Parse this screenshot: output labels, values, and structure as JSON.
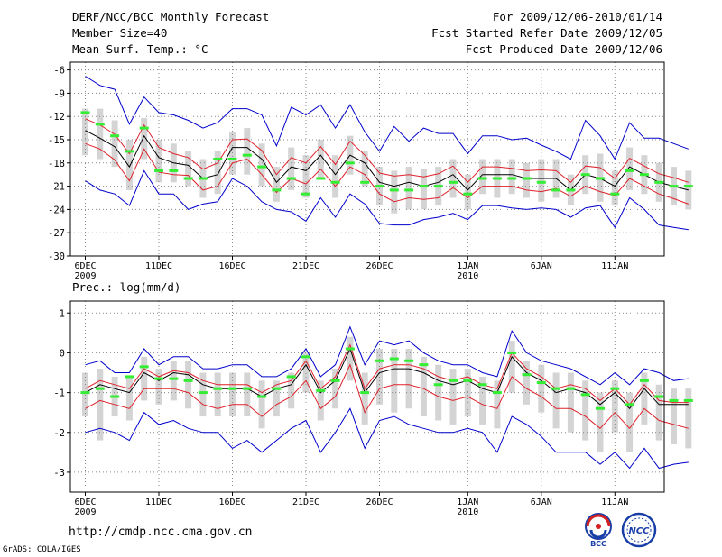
{
  "header": {
    "title": "DERF/NCC/BCC Monthly Forecast",
    "member_size": "Member Size=40",
    "variable": "Mean Surf. Temp.: °C",
    "period": "For 2009/12/06-2010/01/14",
    "fcst_started": "Fcst Started Refer Date 2009/12/05",
    "fcst_produced": "Fcst Produced Date 2009/12/06"
  },
  "footer": {
    "url": "http://cmdp.ncc.cma.gov.cn",
    "grads": "GrADS: COLA/IGES",
    "logo_bcc": "BCC",
    "logo_ncc": "NCC"
  },
  "colors": {
    "ensemble_box": "#d4d4d4",
    "mean_line": "#000000",
    "spread_line": "#e0202a",
    "range_line": "#0000cc",
    "observation": "#33ee33",
    "grid": "#888888"
  },
  "chart_data": [
    {
      "type": "line",
      "title": "Mean Surf. Temp.: °C",
      "xlabel": "",
      "ylabel": "°C",
      "ylim": [
        -30,
        -5
      ],
      "yticks": [
        -30,
        -27,
        -24,
        -21,
        -18,
        -15,
        -12,
        -9,
        -6
      ],
      "ytick_labels": [
        "-30",
        "-27",
        "-24",
        "-21",
        "-18",
        "-15",
        "-12",
        "-9",
        "-6"
      ],
      "x_days": 40,
      "xticks": [
        {
          "day": 0,
          "label": "6DEC",
          "sub": "2009"
        },
        {
          "day": 5,
          "label": "11DEC",
          "sub": ""
        },
        {
          "day": 10,
          "label": "16DEC",
          "sub": ""
        },
        {
          "day": 15,
          "label": "21DEC",
          "sub": ""
        },
        {
          "day": 20,
          "label": "26DEC",
          "sub": ""
        },
        {
          "day": 26,
          "label": "1JAN",
          "sub": "2010"
        },
        {
          "day": 31,
          "label": "6JAN",
          "sub": ""
        },
        {
          "day": 36,
          "label": "11JAN",
          "sub": ""
        }
      ],
      "series": [
        {
          "name": "ensemble mean",
          "color": "#000000",
          "values": [
            -13.8,
            -14.8,
            -15.9,
            -18.5,
            -14.5,
            -17.3,
            -18.0,
            -18.3,
            -20.0,
            -19.5,
            -16.0,
            -16.0,
            -17.5,
            -20.5,
            -18.5,
            -19.0,
            -17.0,
            -19.5,
            -17.0,
            -18.0,
            -20.5,
            -21.0,
            -20.5,
            -21.0,
            -20.5,
            -19.5,
            -21.5,
            -19.5,
            -19.5,
            -19.5,
            -20.0,
            -20.0,
            -20.0,
            -21.5,
            -19.5,
            -20.0,
            -21.0,
            -18.5,
            -19.5,
            -20.5,
            -21.0,
            -21.5
          ]
        },
        {
          "name": "upper spread",
          "color": "#e0202a",
          "values": [
            -12.3,
            -13.1,
            -14.3,
            -16.8,
            -13.1,
            -16.0,
            -16.8,
            -17.3,
            -18.8,
            -18.0,
            -15.0,
            -14.9,
            -16.4,
            -19.5,
            -17.3,
            -18.0,
            -15.9,
            -18.2,
            -15.2,
            -17.0,
            -19.3,
            -19.7,
            -19.5,
            -19.8,
            -19.4,
            -18.4,
            -20.5,
            -18.5,
            -18.5,
            -18.7,
            -19.0,
            -18.9,
            -19.0,
            -20.5,
            -18.4,
            -18.6,
            -20.0,
            -17.4,
            -18.4,
            -19.4,
            -19.9,
            -20.5
          ]
        },
        {
          "name": "lower spread",
          "color": "#e0202a",
          "values": [
            -15.5,
            -16.2,
            -17.6,
            -20.3,
            -16.2,
            -19.2,
            -19.5,
            -19.6,
            -21.5,
            -21.0,
            -18.0,
            -17.5,
            -19.5,
            -21.8,
            -20.0,
            -20.7,
            -18.8,
            -21.0,
            -18.5,
            -19.5,
            -22.0,
            -23.0,
            -22.5,
            -22.7,
            -22.5,
            -21.2,
            -22.5,
            -21.0,
            -21.0,
            -21.0,
            -21.5,
            -21.7,
            -21.3,
            -22.3,
            -21.0,
            -21.7,
            -22.2,
            -20.0,
            -21.0,
            -22.0,
            -22.6,
            -23.3
          ]
        },
        {
          "name": "member max",
          "color": "#0000cc",
          "values": [
            -6.8,
            -8.0,
            -8.5,
            -13.0,
            -9.5,
            -11.5,
            -11.8,
            -12.5,
            -13.5,
            -12.8,
            -11.0,
            -11.0,
            -11.8,
            -15.8,
            -10.8,
            -11.8,
            -10.5,
            -13.5,
            -10.5,
            -14.0,
            -16.5,
            -13.3,
            -15.2,
            -13.5,
            -14.2,
            -14.2,
            -16.8,
            -14.5,
            -14.5,
            -15.0,
            -14.8,
            -15.7,
            -16.5,
            -17.5,
            -12.5,
            -14.5,
            -17.5,
            -12.8,
            -14.8,
            -14.8,
            -15.5,
            -16.2
          ]
        },
        {
          "name": "member min",
          "color": "#0000cc",
          "values": [
            -20.3,
            -21.5,
            -22.0,
            -23.5,
            -19.0,
            -22.0,
            -22.0,
            -24.0,
            -23.3,
            -23.0,
            -20.0,
            -21.0,
            -23.0,
            -24.0,
            -24.3,
            -25.5,
            -22.5,
            -25.0,
            -22.0,
            -23.3,
            -25.8,
            -26.0,
            -26.0,
            -25.3,
            -25.0,
            -24.5,
            -25.3,
            -23.5,
            -23.5,
            -23.8,
            -24.0,
            -23.8,
            -24.0,
            -25.0,
            -23.8,
            -23.5,
            -26.3,
            -22.5,
            -24.0,
            -26.0,
            -26.3,
            -26.6
          ]
        }
      ],
      "ensemble_boxes": {
        "high": [
          -11.0,
          -11.0,
          -12.5,
          -15.0,
          -12.2,
          -15.0,
          -15.5,
          -16.5,
          -17.5,
          -16.5,
          -14.0,
          -13.5,
          -15.5,
          -18.5,
          -16.0,
          -17.0,
          -15.0,
          -17.0,
          -14.5,
          -16.5,
          -18.5,
          -19.0,
          -18.5,
          -18.8,
          -18.5,
          -17.5,
          -19.5,
          -17.5,
          -17.5,
          -17.5,
          -18.0,
          -17.5,
          -17.5,
          -19.5,
          -17.0,
          -16.8,
          -19.0,
          -16.0,
          -17.0,
          -18.0,
          -18.5,
          -19.0
        ],
        "low": [
          -17.0,
          -17.5,
          -18.5,
          -21.5,
          -17.5,
          -20.5,
          -20.5,
          -21.0,
          -22.5,
          -22.0,
          -19.5,
          -19.5,
          -21.0,
          -23.0,
          -21.5,
          -22.5,
          -20.0,
          -22.5,
          -19.5,
          -21.0,
          -23.5,
          -24.5,
          -24.0,
          -24.0,
          -23.5,
          -22.5,
          -24.0,
          -22.0,
          -22.5,
          -22.0,
          -22.5,
          -23.0,
          -22.5,
          -23.5,
          -22.0,
          -23.0,
          -23.5,
          -21.5,
          -22.0,
          -23.0,
          -23.5,
          -24.0
        ]
      },
      "observations": [
        -11.5,
        -13.0,
        -14.5,
        -16.5,
        -13.5,
        -19.0,
        -19.0,
        -20.0,
        -20.0,
        -17.5,
        -17.5,
        -17.0,
        -18.5,
        -21.5,
        -20.0,
        -22.0,
        -20.0,
        -20.5,
        -18.0,
        -20.5,
        -21.0,
        -21.5,
        -21.5,
        -21.0,
        -21.0,
        -20.5,
        -22.0,
        -20.0,
        -20.0,
        -20.0,
        -20.0,
        -20.5,
        -21.5,
        -21.5,
        -19.5,
        -20.0,
        -22.0,
        -19.0,
        -19.5,
        -20.5,
        -21.0,
        -21.0
      ]
    },
    {
      "type": "line",
      "title": "Prec.: log(mm/d)",
      "xlabel": "",
      "ylabel": "log(mm/d)",
      "ylim": [
        -3.5,
        1.3
      ],
      "yticks": [
        -3,
        -2,
        -1,
        0,
        1
      ],
      "ytick_labels": [
        "-3",
        "-2",
        "-1",
        "0",
        "1"
      ],
      "x_days": 40,
      "xticks": [
        {
          "day": 0,
          "label": "6DEC",
          "sub": "2009"
        },
        {
          "day": 5,
          "label": "11DEC",
          "sub": ""
        },
        {
          "day": 10,
          "label": "16DEC",
          "sub": ""
        },
        {
          "day": 15,
          "label": "21DEC",
          "sub": ""
        },
        {
          "day": 20,
          "label": "26DEC",
          "sub": ""
        },
        {
          "day": 26,
          "label": "1JAN",
          "sub": "2010"
        },
        {
          "day": 31,
          "label": "6JAN",
          "sub": ""
        },
        {
          "day": 36,
          "label": "11JAN",
          "sub": ""
        }
      ],
      "series": [
        {
          "name": "ensemble mean",
          "color": "#000000",
          "values": [
            -1.0,
            -0.8,
            -0.9,
            -1.0,
            -0.5,
            -0.7,
            -0.5,
            -0.55,
            -0.8,
            -0.9,
            -0.9,
            -0.9,
            -1.1,
            -0.9,
            -0.8,
            -0.3,
            -1.0,
            -0.7,
            0.1,
            -1.0,
            -0.5,
            -0.4,
            -0.4,
            -0.5,
            -0.7,
            -0.8,
            -0.7,
            -0.9,
            -1.0,
            -0.1,
            -0.5,
            -0.7,
            -1.0,
            -0.9,
            -1.0,
            -1.3,
            -1.0,
            -1.4,
            -0.9,
            -1.3,
            -1.3,
            -1.3
          ]
        },
        {
          "name": "upper spread",
          "color": "#e0202a",
          "values": [
            -0.9,
            -0.7,
            -0.8,
            -0.9,
            -0.4,
            -0.6,
            -0.45,
            -0.5,
            -0.7,
            -0.8,
            -0.8,
            -0.8,
            -1.0,
            -0.8,
            -0.7,
            -0.2,
            -0.9,
            -0.6,
            0.2,
            -0.9,
            -0.4,
            -0.3,
            -0.3,
            -0.4,
            -0.6,
            -0.7,
            -0.6,
            -0.8,
            -0.9,
            0.0,
            -0.4,
            -0.6,
            -0.9,
            -0.8,
            -0.9,
            -1.2,
            -0.9,
            -1.3,
            -0.8,
            -1.2,
            -1.25,
            -1.25
          ]
        },
        {
          "name": "lower spread",
          "color": "#e0202a",
          "values": [
            -1.4,
            -1.2,
            -1.3,
            -1.4,
            -0.9,
            -0.9,
            -0.9,
            -1.0,
            -1.3,
            -1.4,
            -1.3,
            -1.3,
            -1.6,
            -1.3,
            -1.1,
            -0.7,
            -1.4,
            -1.1,
            -0.3,
            -1.5,
            -0.9,
            -0.8,
            -0.8,
            -0.9,
            -1.1,
            -1.2,
            -1.1,
            -1.3,
            -1.4,
            -0.6,
            -0.9,
            -1.1,
            -1.4,
            -1.4,
            -1.6,
            -1.9,
            -1.5,
            -1.9,
            -1.4,
            -1.7,
            -1.8,
            -1.9
          ]
        },
        {
          "name": "member max",
          "color": "#0000cc",
          "values": [
            -0.3,
            -0.2,
            -0.5,
            -0.5,
            0.1,
            -0.3,
            -0.1,
            -0.1,
            -0.4,
            -0.4,
            -0.3,
            -0.3,
            -0.6,
            -0.6,
            -0.4,
            0.1,
            -0.6,
            -0.3,
            0.65,
            -0.3,
            0.3,
            0.2,
            0.3,
            0.0,
            -0.2,
            -0.3,
            -0.3,
            -0.5,
            -0.6,
            0.55,
            0.0,
            -0.2,
            -0.3,
            -0.4,
            -0.6,
            -0.8,
            -0.5,
            -0.8,
            -0.4,
            -0.5,
            -0.7,
            -0.65
          ]
        },
        {
          "name": "member min",
          "color": "#0000cc",
          "values": [
            -2.0,
            -1.9,
            -2.0,
            -2.2,
            -1.5,
            -1.8,
            -1.7,
            -1.9,
            -2.0,
            -2.0,
            -2.4,
            -2.2,
            -2.5,
            -2.2,
            -1.9,
            -1.7,
            -2.5,
            -2.0,
            -1.4,
            -2.4,
            -1.7,
            -1.6,
            -1.8,
            -1.9,
            -2.0,
            -2.0,
            -1.9,
            -2.0,
            -2.5,
            -1.6,
            -1.8,
            -2.1,
            -2.5,
            -2.5,
            -2.5,
            -2.8,
            -2.5,
            -2.9,
            -2.4,
            -2.9,
            -2.8,
            -2.75
          ]
        }
      ],
      "ensemble_boxes": {
        "high": [
          -0.5,
          -0.4,
          -0.6,
          -0.6,
          -0.1,
          -0.4,
          -0.2,
          -0.2,
          -0.5,
          -0.5,
          -0.5,
          -0.5,
          -0.7,
          -0.7,
          -0.5,
          0.0,
          -0.7,
          -0.4,
          0.4,
          -0.5,
          0.1,
          0.1,
          0.1,
          -0.1,
          -0.3,
          -0.4,
          -0.4,
          -0.6,
          -0.7,
          0.3,
          -0.2,
          -0.3,
          -0.5,
          -0.5,
          -0.7,
          -1.0,
          -0.7,
          -1.0,
          -0.5,
          -0.8,
          -0.9,
          -0.9
        ],
        "low": [
          -1.6,
          -2.2,
          -1.6,
          -1.7,
          -1.2,
          -1.3,
          -1.2,
          -1.4,
          -1.6,
          -1.6,
          -1.6,
          -1.6,
          -1.9,
          -1.6,
          -1.4,
          -1.0,
          -1.7,
          -1.4,
          -0.7,
          -1.8,
          -1.3,
          -1.5,
          -1.4,
          -1.6,
          -1.7,
          -1.8,
          -1.6,
          -1.8,
          -1.9,
          -1.0,
          -1.3,
          -1.5,
          -1.9,
          -2.0,
          -2.2,
          -2.5,
          -2.0,
          -2.5,
          -1.8,
          -2.2,
          -2.3,
          -2.4
        ]
      },
      "observations": [
        -1.0,
        -0.9,
        -1.1,
        -0.6,
        -0.35,
        -0.65,
        -0.65,
        -0.7,
        -1.0,
        -0.9,
        -0.9,
        -0.9,
        -1.1,
        -0.9,
        -0.6,
        -0.1,
        -0.95,
        -0.7,
        0.1,
        -1.0,
        -0.2,
        -0.15,
        -0.2,
        -0.3,
        -0.8,
        -0.7,
        -0.7,
        -0.8,
        -1.0,
        0.0,
        -0.55,
        -0.75,
        -0.9,
        -0.9,
        -1.05,
        -1.4,
        -0.9,
        -1.3,
        -0.7,
        -1.1,
        -1.2,
        -1.2
      ]
    }
  ]
}
